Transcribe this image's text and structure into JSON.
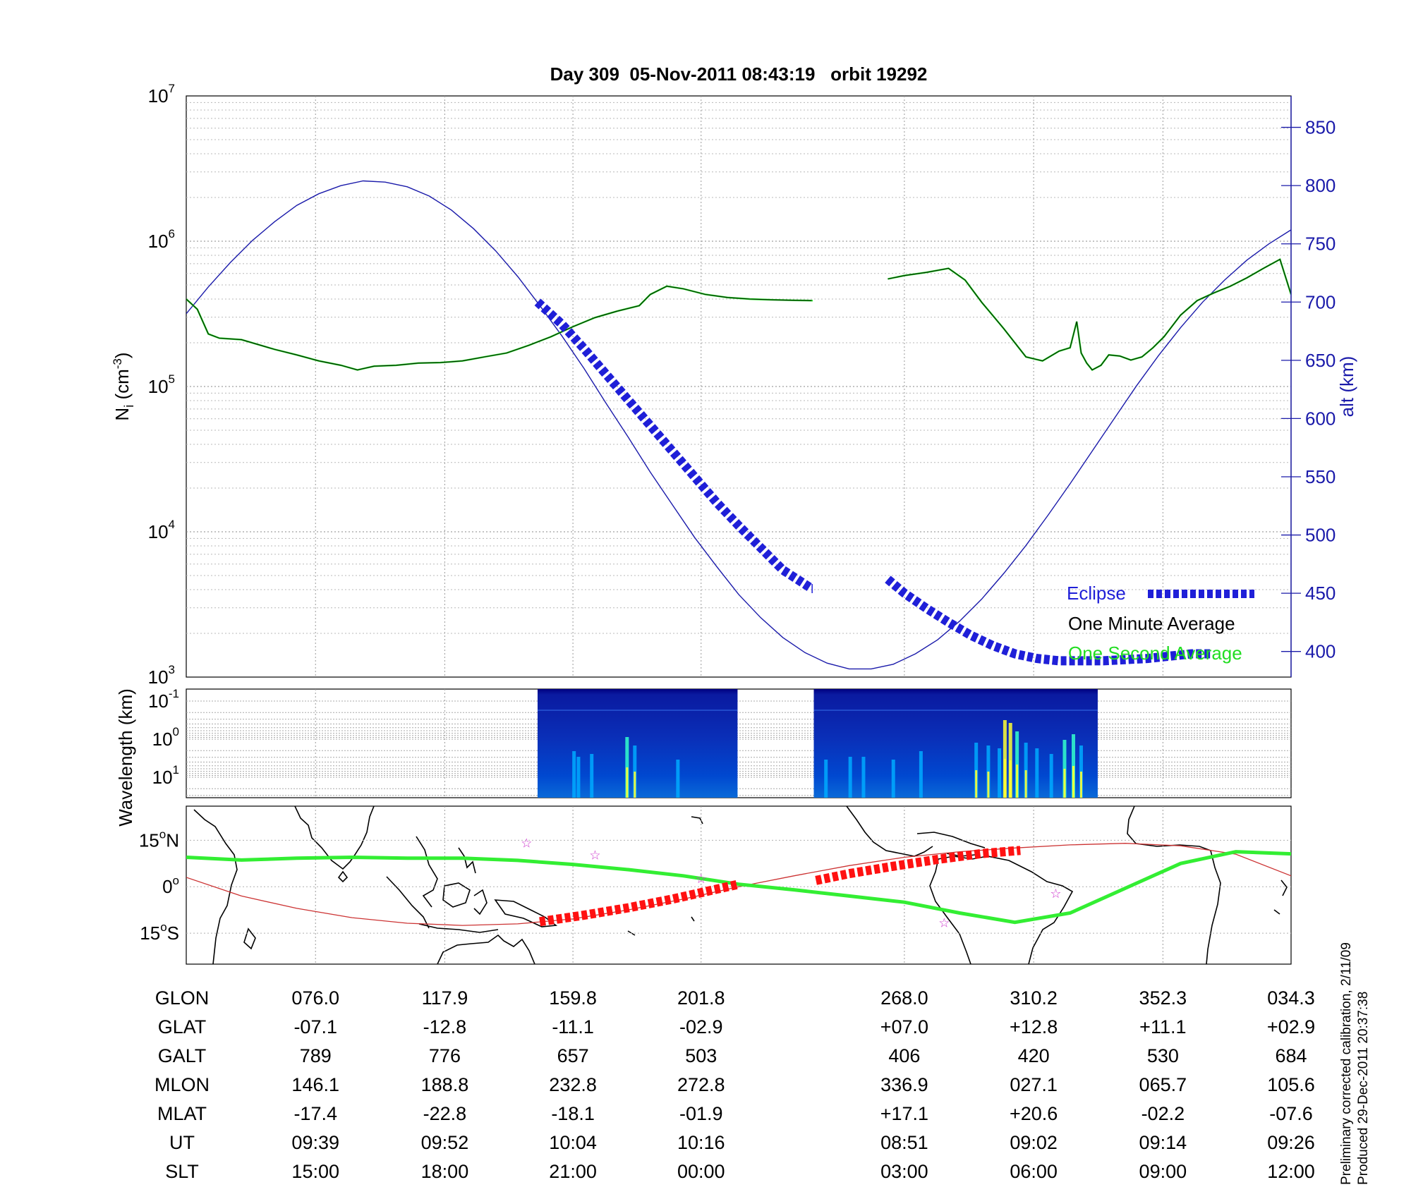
{
  "title": "Day 309  05-Nov-2011 08:43:19   orbit 19292",
  "notes": [
    "Preliminary corrected calibration, 2/11/09",
    "Produced 29-Dec-2011 20:37:38"
  ],
  "chart_data": [
    {
      "type": "line",
      "panel": "ion-density",
      "ylabel_left": "N_i (cm^-3)",
      "ylabel_right": "alt (km)",
      "yscale_left": "log",
      "ylim_left": [
        1000,
        10000000
      ],
      "ylim_right": [
        378,
        877
      ],
      "right_ticks": [
        400,
        450,
        500,
        550,
        600,
        650,
        700,
        750,
        800,
        850
      ],
      "xlim": [
        0,
        100
      ],
      "grid": true,
      "legend_position": "bottom-right",
      "legend": [
        {
          "label": "Eclipse",
          "color": "#1f1fd8"
        },
        {
          "label": "One Minute Average",
          "color": "#000000"
        },
        {
          "label": "One Second Average",
          "color": "#22dd22"
        }
      ],
      "series": [
        {
          "name": "alt",
          "color": "#1a1aaa",
          "axis": "right",
          "x": [
            0,
            2,
            4,
            6,
            8,
            10,
            12,
            14,
            16,
            18,
            20,
            22,
            24,
            26,
            28,
            30,
            32,
            34,
            36,
            38,
            40,
            42,
            44,
            46,
            48,
            50,
            52,
            54,
            56,
            58,
            60,
            62,
            64,
            66,
            68,
            70,
            72,
            74,
            76,
            78,
            80,
            82,
            84,
            86,
            88,
            90,
            92,
            94,
            96,
            98,
            100
          ],
          "y": [
            690,
            713,
            734,
            753,
            769,
            783,
            793,
            800,
            804,
            803,
            799,
            791,
            779,
            763,
            744,
            722,
            697,
            671,
            643,
            613,
            584,
            554,
            526,
            498,
            473,
            449,
            429,
            412,
            399,
            390,
            385,
            385,
            389,
            398,
            410,
            426,
            445,
            467,
            491,
            517,
            544,
            572,
            600,
            628,
            654,
            678,
            700,
            719,
            736,
            750,
            762
          ]
        },
        {
          "name": "One Second Average",
          "color": "#22dd22",
          "axis": "left",
          "segments": [
            {
              "x": [
                0,
                1,
                2,
                3,
                5,
                8,
                10,
                12,
                14,
                15.5,
                17,
                19,
                21,
                23,
                25,
                27,
                29,
                31,
                33,
                35,
                37,
                39,
                41,
                42,
                43.5,
                45,
                47,
                49,
                51,
                53,
                55,
                56.6
              ],
              "y": [
                400000,
                340000,
                230000,
                215000,
                210000,
                180000,
                165000,
                150000,
                140000,
                130000,
                138000,
                140000,
                145000,
                146000,
                150000,
                160000,
                170000,
                192000,
                220000,
                258000,
                298000,
                330000,
                360000,
                430000,
                490000,
                470000,
                430000,
                410000,
                400000,
                395000,
                392000,
                390000
              ]
            },
            {
              "x": [
                56.6,
                56.7
              ],
              "y": [
                390000,
                390000
              ]
            },
            {
              "x": [
                63.5,
                65,
                67,
                69,
                70.5,
                72,
                74,
                76,
                77.5,
                79,
                80,
                80.6,
                81,
                81.5,
                82,
                82.8,
                83.5,
                84.5,
                85.5,
                86.5,
                87.5,
                88.5,
                90,
                91.5,
                93,
                94.5,
                96,
                97.5,
                99,
                100
              ],
              "y": [
                550000,
                580000,
                610000,
                650000,
                540000,
                380000,
                250000,
                160000,
                150000,
                175000,
                185000,
                280000,
                170000,
                145000,
                130000,
                140000,
                165000,
                162000,
                152000,
                160000,
                185000,
                220000,
                310000,
                390000,
                440000,
                490000,
                560000,
                650000,
                750000,
                430000
              ]
            }
          ]
        },
        {
          "name": "One Minute Average",
          "color": "#000000",
          "axis": "left",
          "segments": [
            {
              "x": [
                0,
                1,
                2,
                3,
                5,
                8,
                10,
                12,
                14,
                15.5,
                17,
                19,
                21,
                23,
                25,
                27,
                29,
                31,
                33,
                35,
                37,
                39,
                41,
                42,
                43.5,
                45,
                47,
                49,
                51,
                53,
                55,
                56.6
              ],
              "y": [
                400000,
                340000,
                230000,
                215000,
                210000,
                180000,
                165000,
                150000,
                140000,
                130000,
                138000,
                140000,
                145000,
                146000,
                150000,
                160000,
                170000,
                192000,
                220000,
                258000,
                298000,
                330000,
                360000,
                430000,
                490000,
                470000,
                430000,
                410000,
                400000,
                395000,
                392000,
                390000
              ]
            },
            {
              "x": [
                63.5,
                65,
                67,
                69,
                70.5,
                72,
                74,
                76,
                77.5,
                79,
                80,
                80.6,
                81,
                81.5,
                82,
                82.8,
                83.5,
                84.5,
                85.5,
                86.5,
                87.5,
                88.5,
                90,
                91.5,
                93,
                94.5,
                96,
                97.5,
                99,
                100
              ],
              "y": [
                550000,
                580000,
                610000,
                650000,
                540000,
                380000,
                250000,
                160000,
                150000,
                175000,
                185000,
                280000,
                170000,
                145000,
                130000,
                140000,
                165000,
                162000,
                152000,
                160000,
                185000,
                220000,
                310000,
                390000,
                440000,
                490000,
                560000,
                650000,
                750000,
                430000
              ]
            }
          ]
        },
        {
          "name": "Eclipse",
          "color": "#1f1fd8",
          "axis": "right",
          "segments": [
            {
              "x": [
                31.8,
                34,
                36,
                38,
                40,
                42,
                44,
                46,
                48,
                50,
                52,
                54,
                56.6
              ],
              "y": [
                700,
                681,
                660,
                638,
                616,
                594,
                572,
                550,
                528,
                508,
                489,
                470,
                454
              ]
            },
            {
              "x": [
                56.6,
                56.7
              ],
              "y": [
                454,
                454
              ]
            },
            {
              "x": [
                63.5,
                65,
                67,
                69,
                71,
                73,
                75,
                77,
                79,
                81,
                83,
                85,
                87,
                89,
                91,
                92.8
              ],
              "y": [
                462,
                450,
                437,
                425,
                414,
                405,
                398,
                394,
                392,
                392,
                392,
                393,
                394,
                396,
                398,
                398
              ]
            }
          ]
        }
      ]
    },
    {
      "type": "heatmap",
      "panel": "spectrogram",
      "ylabel": "Wavelength (km)",
      "yscale": "log",
      "y_ticks": [
        "10^-1",
        "10^0",
        "10^1"
      ],
      "colormap": [
        "#000080",
        "#0033cc",
        "#00aaff",
        "#33ffcc",
        "#ffff33"
      ],
      "intervals": [
        [
          31.8,
          49.9
        ],
        [
          56.8,
          82.5
        ]
      ],
      "bright_columns": [
        {
          "x": 35.1,
          "level": 0.45
        },
        {
          "x": 35.5,
          "level": 0.35
        },
        {
          "x": 36.7,
          "level": 0.4
        },
        {
          "x": 39.9,
          "level": 0.7
        },
        {
          "x": 40.6,
          "level": 0.55
        },
        {
          "x": 44.5,
          "level": 0.3
        },
        {
          "x": 57.9,
          "level": 0.3
        },
        {
          "x": 60.1,
          "level": 0.35
        },
        {
          "x": 61.3,
          "level": 0.35
        },
        {
          "x": 64.0,
          "level": 0.3
        },
        {
          "x": 66.5,
          "level": 0.45
        },
        {
          "x": 71.5,
          "level": 0.6
        },
        {
          "x": 72.6,
          "level": 0.55
        },
        {
          "x": 73.6,
          "level": 0.5
        },
        {
          "x": 74.1,
          "level": 1.0
        },
        {
          "x": 74.6,
          "level": 0.95
        },
        {
          "x": 75.2,
          "level": 0.8
        },
        {
          "x": 76.0,
          "level": 0.6
        },
        {
          "x": 77.0,
          "level": 0.5
        },
        {
          "x": 78.3,
          "level": 0.4
        },
        {
          "x": 79.5,
          "level": 0.65
        },
        {
          "x": 80.3,
          "level": 0.75
        },
        {
          "x": 81.0,
          "level": 0.55
        }
      ]
    },
    {
      "type": "line",
      "panel": "ground-track",
      "ytick_labels": [
        "15°N",
        "0°",
        "15°S"
      ],
      "y_ticks": [
        15,
        0,
        -15
      ],
      "ylim": [
        -25,
        26
      ],
      "grid": true,
      "series": [
        {
          "name": "magnetic-equator",
          "color": "#33ee33",
          "x": [
            0,
            5,
            10,
            15,
            20,
            25,
            30,
            35,
            40,
            45,
            50,
            55,
            60,
            65,
            70,
            75,
            80,
            85,
            90,
            95,
            100
          ],
          "y": [
            9.5,
            8.6,
            9.2,
            9.5,
            9.2,
            9.2,
            8.5,
            7.2,
            5.5,
            3.5,
            0.8,
            -1.0,
            -3.0,
            -5.0,
            -8.5,
            -11.5,
            -8.5,
            -0.5,
            7.5,
            11.3,
            10.6
          ]
        },
        {
          "name": "satellite-track",
          "color": "#cc3333",
          "x": [
            0,
            5,
            10,
            15,
            20,
            25,
            30,
            35,
            40,
            45,
            50,
            55,
            60,
            65,
            70,
            75,
            80,
            85,
            90,
            95,
            100
          ],
          "y": [
            3.0,
            -3.0,
            -7.0,
            -10.0,
            -11.8,
            -12.5,
            -12.0,
            -10.4,
            -7.5,
            -4.0,
            0.0,
            3.5,
            6.8,
            9.5,
            11.3,
            12.5,
            13.5,
            14.0,
            13.2,
            10.5,
            3.5
          ]
        },
        {
          "name": "eclipse-track",
          "color": "#ff1111",
          "segments": [
            {
              "x": [
                32.0,
                36,
                40,
                44,
                48,
                49.9
              ],
              "y": [
                -11.3,
                -9.2,
                -6.8,
                -4.0,
                -0.8,
                0.7
              ]
            },
            {
              "x": [
                57.0,
                60,
                64,
                68,
                72,
                75.5
              ],
              "y": [
                2.0,
                4.2,
                6.6,
                8.8,
                10.7,
                11.7
              ]
            }
          ]
        }
      ],
      "stars": [
        {
          "x": 30.8,
          "y": 14.3
        },
        {
          "x": 37.0,
          "y": 10.4
        },
        {
          "x": 46.6,
          "y": 2.8
        },
        {
          "x": 68.6,
          "y": -11.5
        },
        {
          "x": 78.7,
          "y": -2.0
        }
      ]
    },
    {
      "type": "table",
      "rows": [
        {
          "label": "GLON",
          "values": [
            "076.0",
            "117.9",
            "159.8",
            "201.8",
            "268.0",
            "310.2",
            "352.3",
            "034.3"
          ]
        },
        {
          "label": "GLAT",
          "values": [
            "-07.1",
            "-12.8",
            "-11.1",
            "-02.9",
            "+07.0",
            "+12.8",
            "+11.1",
            "+02.9"
          ]
        },
        {
          "label": "GALT",
          "values": [
            "789",
            "776",
            "657",
            "503",
            "406",
            "420",
            "530",
            "684"
          ]
        },
        {
          "label": "MLON",
          "values": [
            "146.1",
            "188.8",
            "232.8",
            "272.8",
            "336.9",
            "027.1",
            "065.7",
            "105.6"
          ]
        },
        {
          "label": "MLAT",
          "values": [
            "-17.4",
            "-22.8",
            "-18.1",
            "-01.9",
            "+17.1",
            "+20.6",
            "-02.2",
            "-07.6"
          ]
        },
        {
          "label": "UT",
          "values": [
            "09:39",
            "09:52",
            "10:04",
            "10:16",
            "08:51",
            "09:02",
            "09:14",
            "09:26"
          ]
        },
        {
          "label": "SLT",
          "values": [
            "15:00",
            "18:00",
            "21:00",
            "00:00",
            "03:00",
            "06:00",
            "09:00",
            "12:00"
          ]
        }
      ],
      "column_x": [
        11.7,
        23.4,
        35.0,
        46.6,
        65.0,
        76.7,
        88.4,
        100.0
      ]
    }
  ]
}
